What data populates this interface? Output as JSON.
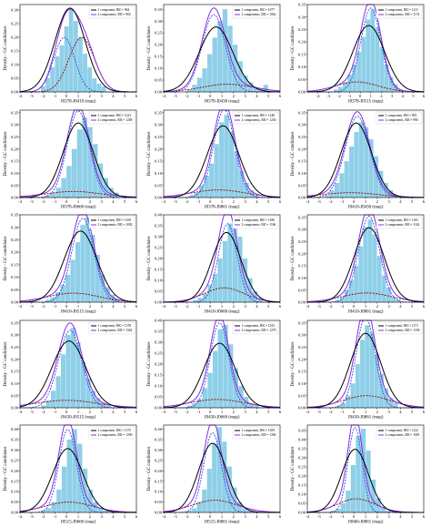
{
  "chart_data": [
    {
      "type": "histogram",
      "xlabel": "J0378-J0410 (mag)",
      "ylabel": "Density - GC candidates",
      "xlim": [
        -4,
        6
      ],
      "ylim": [
        0,
        0.32
      ],
      "xticks": [
        -4,
        -3,
        -2,
        -1,
        0,
        1,
        2,
        3,
        4,
        5,
        6
      ],
      "yticks": [
        0,
        0.05,
        0.1,
        0.15,
        0.2,
        0.25,
        0.3
      ],
      "legend": [
        "1 component, BIC= 964",
        "2 components, BIC= 965"
      ],
      "bars": [
        0.02,
        0.05,
        0.09,
        0.13,
        0.17,
        0.24,
        0.3,
        0.26,
        0.2,
        0.14,
        0.09,
        0.05,
        0.03,
        0.02
      ],
      "bar_range": [
        -2.2,
        3.4
      ],
      "one": {
        "mu": 0.3,
        "sigma": 1.3,
        "w": 1
      },
      "two": [
        {
          "mu": -0.2,
          "sigma": 0.9,
          "w": 0.45
        },
        {
          "mu": 1.3,
          "sigma": 1.1,
          "w": 0.55
        }
      ]
    },
    {
      "type": "histogram",
      "xlabel": "J0378-J0430 (mag)",
      "ylabel": "Density - GC candidates",
      "xlim": [
        -4,
        6
      ],
      "ylim": [
        0,
        0.37
      ],
      "xticks": [
        -4,
        -3,
        -2,
        -1,
        0,
        1,
        2,
        3,
        4,
        5,
        6
      ],
      "yticks": [
        0,
        0.05,
        0.1,
        0.15,
        0.2,
        0.25,
        0.3,
        0.35
      ],
      "legend": [
        "1 component, BIC= 1077",
        "2 components, BIC= 1062"
      ],
      "bars": [
        0.01,
        0.03,
        0.06,
        0.1,
        0.16,
        0.23,
        0.3,
        0.35,
        0.28,
        0.2,
        0.13,
        0.07,
        0.04,
        0.02,
        0.01,
        0.03
      ],
      "bar_range": [
        -2.0,
        5.0
      ],
      "one": {
        "mu": 0.5,
        "sigma": 1.45,
        "w": 1
      },
      "two": [
        {
          "mu": 0.3,
          "sigma": 1.0,
          "w": 0.82
        },
        {
          "mu": 1.5,
          "sigma": 2.2,
          "w": 0.18
        }
      ]
    },
    {
      "type": "histogram",
      "xlabel": "J0378-J0515 (mag)",
      "ylabel": "Density - GC candidates",
      "xlim": [
        -5,
        6
      ],
      "ylim": [
        0,
        0.35
      ],
      "xticks": [
        -4,
        -3,
        -2,
        -1,
        0,
        1,
        2,
        3,
        4,
        5,
        6
      ],
      "yticks": [
        0,
        0.05,
        0.1,
        0.15,
        0.2,
        0.25,
        0.3,
        0.35
      ],
      "legend": [
        "1 component, BIC= 1211",
        "2 components, BIC= 1174"
      ],
      "bars": [
        0.01,
        0.02,
        0.04,
        0.07,
        0.11,
        0.16,
        0.22,
        0.29,
        0.33,
        0.26,
        0.18,
        0.11,
        0.06,
        0.03,
        0.01
      ],
      "bar_range": [
        -2.5,
        4.0
      ],
      "one": {
        "mu": 0.8,
        "sigma": 1.5,
        "w": 1
      },
      "two": [
        {
          "mu": 1.0,
          "sigma": 0.95,
          "w": 0.8
        },
        {
          "mu": -0.3,
          "sigma": 2.0,
          "w": 0.2
        }
      ]
    },
    {
      "type": "histogram",
      "xlabel": "J0378-J0660 (mag)",
      "ylabel": "Density - GC candidates",
      "xlim": [
        -4,
        6
      ],
      "ylim": [
        0,
        0.36
      ],
      "xticks": [
        -4,
        -3,
        -2,
        -1,
        0,
        1,
        2,
        3,
        4,
        5,
        6
      ],
      "yticks": [
        0,
        0.05,
        0.1,
        0.15,
        0.2,
        0.25,
        0.3,
        0.35
      ],
      "legend": [
        "1 component, BIC= 1223",
        "2 components, BIC= 1208"
      ],
      "bars": [
        0.01,
        0.02,
        0.04,
        0.08,
        0.13,
        0.2,
        0.28,
        0.33,
        0.29,
        0.22,
        0.14,
        0.08,
        0.04,
        0.02
      ],
      "bar_range": [
        -1.8,
        4.5
      ],
      "one": {
        "mu": 1.0,
        "sigma": 1.3,
        "w": 1
      },
      "two": [
        {
          "mu": 1.0,
          "sigma": 0.95,
          "w": 0.85
        },
        {
          "mu": 0.6,
          "sigma": 2.4,
          "w": 0.15
        }
      ]
    },
    {
      "type": "histogram",
      "xlabel": "J0378-J0861 (mag)",
      "ylabel": "Density - GC candidates",
      "xlim": [
        -4,
        6
      ],
      "ylim": [
        0,
        0.36
      ],
      "xticks": [
        -4,
        -3,
        -2,
        -1,
        0,
        1,
        2,
        3,
        4,
        5,
        6
      ],
      "yticks": [
        0,
        0.05,
        0.1,
        0.15,
        0.2,
        0.25,
        0.3,
        0.35
      ],
      "legend": [
        "1 component, BIC= 1248",
        "2 components, BIC= 1236"
      ],
      "bars": [
        0.01,
        0.02,
        0.05,
        0.09,
        0.14,
        0.22,
        0.31,
        0.34,
        0.27,
        0.19,
        0.11,
        0.06,
        0.03,
        0.01
      ],
      "bar_range": [
        -1.8,
        4.2
      ],
      "one": {
        "mu": 1.1,
        "sigma": 1.35,
        "w": 1
      },
      "two": [
        {
          "mu": 1.2,
          "sigma": 0.9,
          "w": 0.82
        },
        {
          "mu": 0.7,
          "sigma": 2.3,
          "w": 0.18
        }
      ]
    },
    {
      "type": "histogram",
      "xlabel": "J0410-J0430 (mag)",
      "ylabel": "Density - GC candidates",
      "xlim": [
        -4,
        6
      ],
      "ylim": [
        0,
        0.36
      ],
      "xticks": [
        -4,
        -3,
        -2,
        -1,
        0,
        1,
        2,
        3,
        4,
        5,
        6
      ],
      "yticks": [
        0,
        0.05,
        0.1,
        0.15,
        0.2,
        0.25,
        0.3,
        0.35
      ],
      "legend": [
        "1 component, BIC= 993",
        "2 components, BIC= 990"
      ],
      "bars": [
        0.01,
        0.03,
        0.06,
        0.1,
        0.15,
        0.21,
        0.27,
        0.31,
        0.29,
        0.24,
        0.17,
        0.11,
        0.06,
        0.03,
        0.01
      ],
      "bar_range": [
        -2.5,
        3.8
      ],
      "one": {
        "mu": 0.2,
        "sigma": 1.3,
        "w": 1
      },
      "two": [
        {
          "mu": 0.3,
          "sigma": 1.05,
          "w": 0.88
        },
        {
          "mu": -0.3,
          "sigma": 2.4,
          "w": 0.12
        }
      ]
    },
    {
      "type": "histogram",
      "xlabel": "J0410-J0515 (mag)",
      "ylabel": "Density - GC candidates",
      "xlim": [
        -4,
        6
      ],
      "ylim": [
        0,
        0.35
      ],
      "xticks": [
        -4,
        -3,
        -2,
        -1,
        0,
        1,
        2,
        3,
        4,
        5,
        6
      ],
      "yticks": [
        0,
        0.05,
        0.1,
        0.15,
        0.2,
        0.25,
        0.3,
        0.35
      ],
      "legend": [
        "1 component, BIC= 1108",
        "2 components, BIC= 1092"
      ],
      "bars": [
        0.01,
        0.02,
        0.04,
        0.07,
        0.11,
        0.17,
        0.24,
        0.31,
        0.34,
        0.27,
        0.19,
        0.11,
        0.06,
        0.03,
        0.01
      ],
      "bar_range": [
        -1.8,
        4.6
      ],
      "one": {
        "mu": 1.2,
        "sigma": 1.4,
        "w": 1
      },
      "two": [
        {
          "mu": 1.4,
          "sigma": 0.95,
          "w": 0.8
        },
        {
          "mu": 0.6,
          "sigma": 2.2,
          "w": 0.2
        }
      ]
    },
    {
      "type": "histogram",
      "xlabel": "J0410-J0660 (mag)",
      "ylabel": "Density - GC candidates",
      "xlim": [
        -4,
        6
      ],
      "ylim": [
        0,
        0.4
      ],
      "xticks": [
        -4,
        -3,
        -2,
        -1,
        0,
        1,
        2,
        3,
        4,
        5,
        6
      ],
      "yticks": [
        0,
        0.05,
        0.1,
        0.15,
        0.2,
        0.25,
        0.3,
        0.35,
        0.4
      ],
      "legend": [
        "1 component, BIC= 1186",
        "2 components, BIC= 1166"
      ],
      "bars": [
        0.01,
        0.02,
        0.04,
        0.08,
        0.13,
        0.2,
        0.28,
        0.36,
        0.38,
        0.3,
        0.2,
        0.11,
        0.05,
        0.02
      ],
      "bar_range": [
        -1.5,
        4.5
      ],
      "one": {
        "mu": 1.4,
        "sigma": 1.25,
        "w": 1
      },
      "two": [
        {
          "mu": 1.5,
          "sigma": 0.8,
          "w": 0.72
        },
        {
          "mu": 1.2,
          "sigma": 1.7,
          "w": 0.28
        }
      ]
    },
    {
      "type": "histogram",
      "xlabel": "J0410-J0861 (mag)",
      "ylabel": "Density - GC candidates",
      "xlim": [
        -4,
        6
      ],
      "ylim": [
        0,
        0.36
      ],
      "xticks": [
        -4,
        -3,
        -2,
        -1,
        0,
        1,
        2,
        3,
        4,
        5,
        6
      ],
      "yticks": [
        0,
        0.05,
        0.1,
        0.15,
        0.2,
        0.25,
        0.3,
        0.35
      ],
      "legend": [
        "1 component, BIC= 1165",
        "2 components, BIC= 1162"
      ],
      "bars": [
        0.01,
        0.02,
        0.05,
        0.09,
        0.15,
        0.23,
        0.31,
        0.34,
        0.28,
        0.19,
        0.11,
        0.06,
        0.02,
        0.01
      ],
      "bar_range": [
        -1.6,
        4.0
      ],
      "one": {
        "mu": 1.3,
        "sigma": 1.3,
        "w": 1
      },
      "two": [
        {
          "mu": 1.3,
          "sigma": 0.9,
          "w": 0.8
        },
        {
          "mu": 1.1,
          "sigma": 2.1,
          "w": 0.2
        }
      ]
    },
    {
      "type": "histogram",
      "xlabel": "J0430-J0515 (mag)",
      "ylabel": "Density - GC candidates",
      "xlim": [
        -4,
        6
      ],
      "ylim": [
        0,
        0.36
      ],
      "xticks": [
        -4,
        -3,
        -2,
        -1,
        0,
        1,
        2,
        3,
        4,
        5,
        6
      ],
      "yticks": [
        0,
        0.05,
        0.1,
        0.15,
        0.2,
        0.25,
        0.3,
        0.35
      ],
      "legend": [
        "1 component, BIC= 1378",
        "2 components, BIC= 1362"
      ],
      "bars": [
        0.01,
        0.03,
        0.07,
        0.13,
        0.22,
        0.3,
        0.33,
        0.27,
        0.19,
        0.12,
        0.07,
        0.04,
        0.02,
        0.01
      ],
      "bar_range": [
        -2.2,
        3.8
      ],
      "one": {
        "mu": 0.2,
        "sigma": 1.45,
        "w": 1
      },
      "two": [
        {
          "mu": 0.3,
          "sigma": 1.0,
          "w": 0.8
        },
        {
          "mu": 0.0,
          "sigma": 2.6,
          "w": 0.2
        }
      ]
    },
    {
      "type": "histogram",
      "xlabel": "J0430-J0660 (mag)",
      "ylabel": "Density - GC candidates",
      "xlim": [
        -4,
        6
      ],
      "ylim": [
        0,
        0.4
      ],
      "xticks": [
        -4,
        -3,
        -2,
        -1,
        0,
        1,
        2,
        3,
        4,
        5,
        6
      ],
      "yticks": [
        0,
        0.05,
        0.1,
        0.15,
        0.2,
        0.25,
        0.3,
        0.35,
        0.4
      ],
      "legend": [
        "1 component, BIC= 1323",
        "2 components, BIC= 1279"
      ],
      "bars": [
        0.01,
        0.02,
        0.04,
        0.09,
        0.16,
        0.26,
        0.36,
        0.38,
        0.29,
        0.18,
        0.1,
        0.05,
        0.02,
        0.01
      ],
      "bar_range": [
        -2.0,
        4.2
      ],
      "one": {
        "mu": 0.8,
        "sigma": 1.35,
        "w": 1
      },
      "two": [
        {
          "mu": 0.8,
          "sigma": 0.8,
          "w": 0.78
        },
        {
          "mu": 0.6,
          "sigma": 2.3,
          "w": 0.22
        }
      ]
    },
    {
      "type": "histogram",
      "xlabel": "J0430-J0861 (mag)",
      "ylabel": "Density - GC candidates",
      "xlim": [
        -4,
        6
      ],
      "ylim": [
        0,
        0.36
      ],
      "xticks": [
        -4,
        -3,
        -2,
        -1,
        0,
        1,
        2,
        3,
        4,
        5,
        6
      ],
      "yticks": [
        0,
        0.05,
        0.1,
        0.15,
        0.2,
        0.25,
        0.3,
        0.35
      ],
      "legend": [
        "1 component, BIC= 1371",
        "2 components, BIC= 1339"
      ],
      "bars": [
        0.01,
        0.02,
        0.05,
        0.1,
        0.18,
        0.28,
        0.34,
        0.31,
        0.22,
        0.14,
        0.08,
        0.04,
        0.02
      ],
      "bar_range": [
        -1.5,
        3.8
      ],
      "one": {
        "mu": 1.0,
        "sigma": 1.3,
        "w": 1
      },
      "two": [
        {
          "mu": 1.0,
          "sigma": 0.8,
          "w": 0.75
        },
        {
          "mu": 1.1,
          "sigma": 2.0,
          "w": 0.25
        }
      ]
    },
    {
      "type": "histogram",
      "xlabel": "J0515-J0660 (mag)",
      "ylabel": "Density - GC candidates",
      "xlim": [
        -4,
        6
      ],
      "ylim": [
        0,
        0.42
      ],
      "xticks": [
        -4,
        -3,
        -2,
        -1,
        0,
        1,
        2,
        3,
        4,
        5,
        6
      ],
      "yticks": [
        0,
        0.05,
        0.1,
        0.15,
        0.2,
        0.25,
        0.3,
        0.35,
        0.4
      ],
      "legend": [
        "1 component, BIC= 1375",
        "2 components, BIC= 1290"
      ],
      "bars": [
        0.01,
        0.02,
        0.05,
        0.11,
        0.22,
        0.35,
        0.4,
        0.33,
        0.21,
        0.11,
        0.05,
        0.02,
        0.01
      ],
      "bar_range": [
        -2.2,
        3.6
      ],
      "one": {
        "mu": 0.1,
        "sigma": 1.3,
        "w": 1
      },
      "two": [
        {
          "mu": 0.1,
          "sigma": 0.75,
          "w": 0.75
        },
        {
          "mu": 0.2,
          "sigma": 2.0,
          "w": 0.25
        }
      ]
    },
    {
      "type": "histogram",
      "xlabel": "J0515-J0861 (mag)",
      "ylabel": "Density - GC candidates",
      "xlim": [
        -4,
        6
      ],
      "ylim": [
        0,
        0.42
      ],
      "xticks": [
        -4,
        -3,
        -2,
        -1,
        0,
        1,
        2,
        3,
        4,
        5,
        6
      ],
      "yticks": [
        0,
        0.05,
        0.1,
        0.15,
        0.2,
        0.25,
        0.3,
        0.35,
        0.4
      ],
      "legend": [
        "1 component, BIC= 1309",
        "2 components, BIC= 1300"
      ],
      "bars": [
        0.01,
        0.02,
        0.05,
        0.11,
        0.21,
        0.33,
        0.41,
        0.34,
        0.22,
        0.12,
        0.05,
        0.02,
        0.01
      ],
      "bar_range": [
        -2.0,
        3.6
      ],
      "one": {
        "mu": 0.2,
        "sigma": 1.2,
        "w": 1
      },
      "two": [
        {
          "mu": 0.2,
          "sigma": 0.75,
          "w": 0.72
        },
        {
          "mu": 0.4,
          "sigma": 1.9,
          "w": 0.28
        }
      ]
    },
    {
      "type": "histogram",
      "xlabel": "J0660-J0861 (mag)",
      "ylabel": "Density - GC candidates",
      "xlim": [
        -4,
        6
      ],
      "ylim": [
        0,
        0.48
      ],
      "xticks": [
        -4,
        -3,
        -2,
        -1,
        0,
        1,
        2,
        3,
        4,
        5,
        6
      ],
      "yticks": [
        0,
        0.05,
        0.1,
        0.15,
        0.2,
        0.25,
        0.3,
        0.35,
        0.4,
        0.45
      ],
      "legend": [
        "1 component, BIC= 1222",
        "2 components, BIC= 1081"
      ],
      "bars": [
        0.01,
        0.02,
        0.05,
        0.12,
        0.26,
        0.42,
        0.46,
        0.34,
        0.18,
        0.08,
        0.03,
        0.01
      ],
      "bar_range": [
        -2.0,
        3.2
      ],
      "one": {
        "mu": 0.1,
        "sigma": 1.15,
        "w": 1
      },
      "two": [
        {
          "mu": 0.1,
          "sigma": 0.6,
          "w": 0.7
        },
        {
          "mu": 0.2,
          "sigma": 1.6,
          "w": 0.3
        }
      ]
    }
  ],
  "colors": {
    "hist": "#8fcfe8",
    "one_component": "#000000",
    "two_components": "#8a2be2",
    "gauss1": "#2a4fd6",
    "gauss2": "#8b0000",
    "axis": "#000000"
  }
}
